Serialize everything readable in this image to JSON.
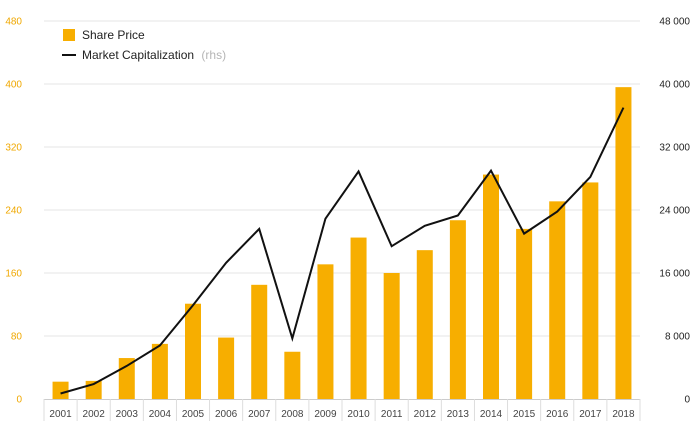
{
  "chart_data": {
    "type": "bar",
    "categories": [
      "2001",
      "2002",
      "2003",
      "2004",
      "2005",
      "2006",
      "2007",
      "2008",
      "2009",
      "2010",
      "2011",
      "2012",
      "2013",
      "2014",
      "2015",
      "2016",
      "2017",
      "2018"
    ],
    "series": [
      {
        "name": "Share Price",
        "type": "bar",
        "axis": "left",
        "color": "#f7ae00",
        "values": [
          22,
          23,
          52,
          70,
          121,
          78,
          145,
          60,
          171,
          205,
          160,
          189,
          227,
          285,
          216,
          251,
          275,
          396
        ]
      },
      {
        "name": "Market Capitalization",
        "name_suffix": "(rhs)",
        "type": "line",
        "axis": "right",
        "color": "#111111",
        "values": [
          700,
          1900,
          4200,
          6800,
          11900,
          17300,
          21600,
          7700,
          22900,
          28900,
          19400,
          22000,
          23300,
          29000,
          21000,
          23800,
          28200,
          37000
        ]
      }
    ],
    "y_left": {
      "ylim": [
        0,
        480
      ],
      "ticks": [
        "0",
        "80",
        "160",
        "240",
        "320",
        "400",
        "480"
      ],
      "tick_values": [
        0,
        80,
        160,
        240,
        320,
        400,
        480
      ],
      "color": "#f0a800"
    },
    "y_right": {
      "ylim": [
        0,
        48000
      ],
      "ticks": [
        "0",
        "8 000",
        "16 000",
        "24 000",
        "32 000",
        "40 000",
        "48 000"
      ],
      "tick_values": [
        0,
        8000,
        16000,
        24000,
        32000,
        40000,
        48000
      ]
    },
    "legend": {
      "placement": "top-left"
    },
    "grid": true
  }
}
